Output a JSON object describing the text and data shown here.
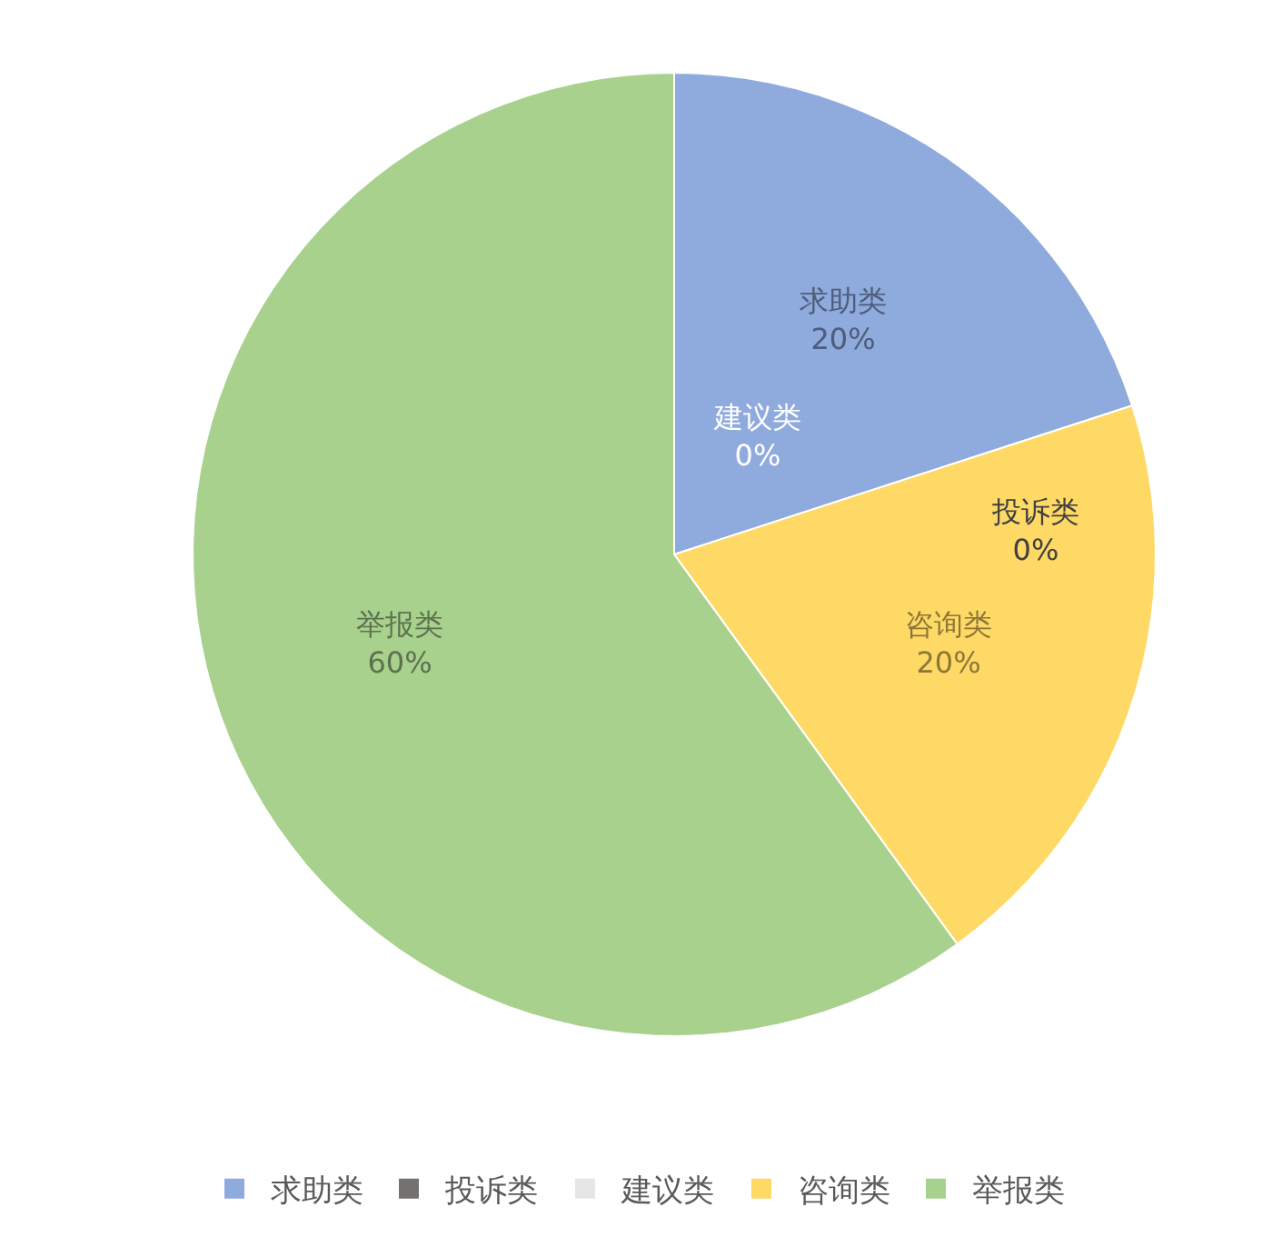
{
  "chart_data": {
    "type": "pie",
    "categories": [
      "求助类",
      "投诉类",
      "建议类",
      "咨询类",
      "举报类"
    ],
    "values": [
      20,
      0,
      0,
      20,
      60
    ],
    "colors": [
      "#8faadc",
      "#767171",
      "#e7e6e6",
      "#ffd966",
      "#a9d18e"
    ],
    "value_labels": [
      "20%",
      "0%",
      "0%",
      "20%",
      "60%"
    ],
    "legend": "bottom"
  }
}
